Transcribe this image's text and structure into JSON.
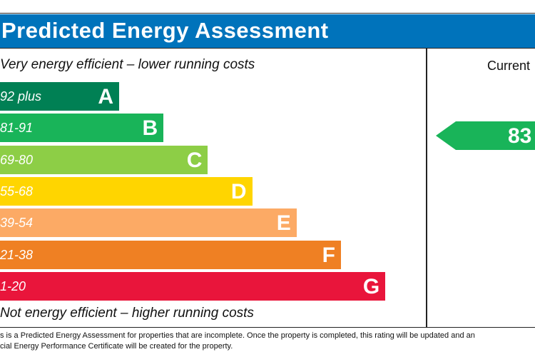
{
  "header": {
    "title": "Predicted Energy Assessment"
  },
  "captions": {
    "top": "Very energy efficient – lower running costs",
    "bottom": "Not energy efficient – higher running costs"
  },
  "column": {
    "current_label": "Current"
  },
  "footnote": {
    "line1": "s is a Predicted Energy Assessment for properties that are incomplete. Once the property is completed, this rating will be updated and an",
    "line2": "cial Energy Performance Certificate will be created for the property."
  },
  "chart_data": {
    "type": "bar",
    "categories": [
      "A",
      "B",
      "C",
      "D",
      "E",
      "F",
      "G"
    ],
    "ranges": [
      "92 plus",
      "81-91",
      "69-80",
      "55-68",
      "39-54",
      "21-38",
      "1-20"
    ],
    "colors": [
      "#008054",
      "#19b459",
      "#8dce46",
      "#ffd500",
      "#fcaa65",
      "#ef8023",
      "#e9153b"
    ],
    "current": {
      "value": "83",
      "band": "B",
      "color": "#19b459"
    }
  }
}
